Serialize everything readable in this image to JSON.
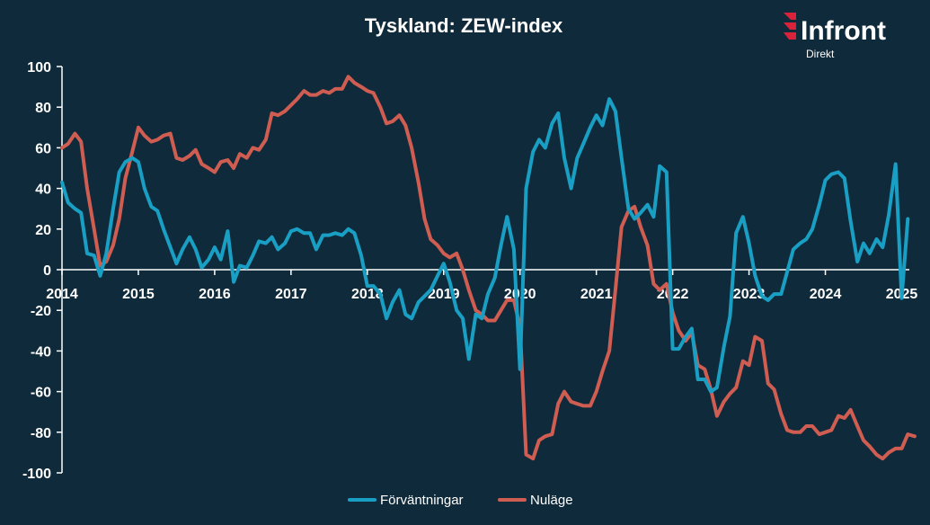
{
  "chart_data": {
    "type": "line",
    "title": "Tyskland: ZEW-index",
    "xlabel": "",
    "ylabel": "",
    "xlim": [
      2014.0,
      2025.1
    ],
    "ylim": [
      -100,
      100
    ],
    "yticks": [
      100,
      80,
      60,
      40,
      20,
      0,
      -20,
      -40,
      -60,
      -80,
      -100
    ],
    "xticks": [
      "2014",
      "2015",
      "2016",
      "2017",
      "2018",
      "2019",
      "2020",
      "2021",
      "2022",
      "2023",
      "2024",
      "2025"
    ],
    "grid": false,
    "legend": "bottom-center",
    "series": [
      {
        "name": "Förväntningar",
        "color": "#1a9fc4",
        "points": [
          [
            2014.0,
            43
          ],
          [
            2014.08,
            33
          ],
          [
            2014.17,
            30
          ],
          [
            2014.25,
            28
          ],
          [
            2014.33,
            8
          ],
          [
            2014.42,
            7
          ],
          [
            2014.5,
            -3
          ],
          [
            2014.58,
            8
          ],
          [
            2014.67,
            30
          ],
          [
            2014.75,
            48
          ],
          [
            2014.83,
            53
          ],
          [
            2014.92,
            55
          ],
          [
            2015.0,
            53
          ],
          [
            2015.08,
            40
          ],
          [
            2015.17,
            31
          ],
          [
            2015.25,
            29
          ],
          [
            2015.33,
            20
          ],
          [
            2015.42,
            11
          ],
          [
            2015.5,
            3
          ],
          [
            2015.58,
            10
          ],
          [
            2015.67,
            16
          ],
          [
            2015.75,
            10
          ],
          [
            2015.83,
            1
          ],
          [
            2015.92,
            5
          ],
          [
            2016.0,
            11
          ],
          [
            2016.08,
            5
          ],
          [
            2016.17,
            19
          ],
          [
            2016.25,
            -6
          ],
          [
            2016.33,
            2
          ],
          [
            2016.42,
            1
          ],
          [
            2016.5,
            7
          ],
          [
            2016.58,
            14
          ],
          [
            2016.67,
            13
          ],
          [
            2016.75,
            16
          ],
          [
            2016.83,
            10
          ],
          [
            2016.92,
            13
          ],
          [
            2017.0,
            19
          ],
          [
            2017.08,
            20
          ],
          [
            2017.17,
            18
          ],
          [
            2017.25,
            18
          ],
          [
            2017.33,
            10
          ],
          [
            2017.42,
            17
          ],
          [
            2017.5,
            17
          ],
          [
            2017.58,
            18
          ],
          [
            2017.67,
            17
          ],
          [
            2017.75,
            20
          ],
          [
            2017.83,
            18
          ],
          [
            2017.92,
            7
          ],
          [
            2018.0,
            -8
          ],
          [
            2018.08,
            -8
          ],
          [
            2018.17,
            -12
          ],
          [
            2018.25,
            -24
          ],
          [
            2018.33,
            -16
          ],
          [
            2018.42,
            -10
          ],
          [
            2018.5,
            -22
          ],
          [
            2018.58,
            -24
          ],
          [
            2018.67,
            -16
          ],
          [
            2018.75,
            -13
          ],
          [
            2018.83,
            -10
          ],
          [
            2018.92,
            -3
          ],
          [
            2019.0,
            3
          ],
          [
            2019.08,
            -6
          ],
          [
            2019.17,
            -20
          ],
          [
            2019.25,
            -24
          ],
          [
            2019.33,
            -44
          ],
          [
            2019.42,
            -22
          ],
          [
            2019.5,
            -24
          ],
          [
            2019.58,
            -12
          ],
          [
            2019.67,
            -4
          ],
          [
            2019.75,
            12
          ],
          [
            2019.83,
            26
          ],
          [
            2019.92,
            10
          ],
          [
            2020.0,
            -49
          ],
          [
            2020.08,
            40
          ],
          [
            2020.17,
            58
          ],
          [
            2020.25,
            64
          ],
          [
            2020.33,
            60
          ],
          [
            2020.42,
            72
          ],
          [
            2020.5,
            77
          ],
          [
            2020.58,
            55
          ],
          [
            2020.67,
            40
          ],
          [
            2020.75,
            55
          ],
          [
            2020.83,
            62
          ],
          [
            2020.92,
            70
          ],
          [
            2021.0,
            76
          ],
          [
            2021.08,
            71
          ],
          [
            2021.17,
            84
          ],
          [
            2021.25,
            78
          ],
          [
            2021.33,
            55
          ],
          [
            2021.42,
            30
          ],
          [
            2021.5,
            25
          ],
          [
            2021.58,
            28
          ],
          [
            2021.67,
            32
          ],
          [
            2021.75,
            26
          ],
          [
            2021.83,
            51
          ],
          [
            2021.92,
            48
          ],
          [
            2022.0,
            -39
          ],
          [
            2022.08,
            -39
          ],
          [
            2022.17,
            -33
          ],
          [
            2022.25,
            -29
          ],
          [
            2022.33,
            -54
          ],
          [
            2022.42,
            -54
          ],
          [
            2022.5,
            -60
          ],
          [
            2022.58,
            -58
          ],
          [
            2022.67,
            -38
          ],
          [
            2022.75,
            -23
          ],
          [
            2022.83,
            18
          ],
          [
            2022.92,
            26
          ],
          [
            2023.0,
            13
          ],
          [
            2023.08,
            -3
          ],
          [
            2023.17,
            -13
          ],
          [
            2023.25,
            -15
          ],
          [
            2023.33,
            -12
          ],
          [
            2023.42,
            -12
          ],
          [
            2023.5,
            -1
          ],
          [
            2023.58,
            10
          ],
          [
            2023.67,
            13
          ],
          [
            2023.75,
            15
          ],
          [
            2023.83,
            20
          ],
          [
            2023.92,
            32
          ],
          [
            2024.0,
            44
          ],
          [
            2024.08,
            47
          ],
          [
            2024.17,
            48
          ],
          [
            2024.25,
            45
          ],
          [
            2024.33,
            24
          ],
          [
            2024.42,
            4
          ],
          [
            2024.5,
            13
          ],
          [
            2024.58,
            8
          ],
          [
            2024.67,
            15
          ],
          [
            2024.75,
            11
          ],
          [
            2024.83,
            27
          ],
          [
            2024.92,
            52
          ],
          [
            2025.0,
            -14
          ],
          [
            2025.08,
            25
          ]
        ]
      },
      {
        "name": "Nuläge",
        "color": "#d05d52",
        "points": [
          [
            2014.0,
            60
          ],
          [
            2014.08,
            62
          ],
          [
            2014.17,
            67
          ],
          [
            2014.25,
            63
          ],
          [
            2014.33,
            40
          ],
          [
            2014.42,
            20
          ],
          [
            2014.5,
            2
          ],
          [
            2014.58,
            4
          ],
          [
            2014.67,
            12
          ],
          [
            2014.75,
            25
          ],
          [
            2014.83,
            45
          ],
          [
            2014.92,
            58
          ],
          [
            2015.0,
            70
          ],
          [
            2015.08,
            66
          ],
          [
            2015.17,
            63
          ],
          [
            2015.25,
            64
          ],
          [
            2015.33,
            66
          ],
          [
            2015.42,
            67
          ],
          [
            2015.5,
            55
          ],
          [
            2015.58,
            54
          ],
          [
            2015.67,
            56
          ],
          [
            2015.75,
            59
          ],
          [
            2015.83,
            52
          ],
          [
            2015.92,
            50
          ],
          [
            2016.0,
            48
          ],
          [
            2016.08,
            53
          ],
          [
            2016.17,
            54
          ],
          [
            2016.25,
            50
          ],
          [
            2016.33,
            57
          ],
          [
            2016.42,
            55
          ],
          [
            2016.5,
            60
          ],
          [
            2016.58,
            59
          ],
          [
            2016.67,
            64
          ],
          [
            2016.75,
            77
          ],
          [
            2016.83,
            76
          ],
          [
            2016.92,
            78
          ],
          [
            2017.0,
            81
          ],
          [
            2017.08,
            84
          ],
          [
            2017.17,
            88
          ],
          [
            2017.25,
            86
          ],
          [
            2017.33,
            86
          ],
          [
            2017.42,
            88
          ],
          [
            2017.5,
            87
          ],
          [
            2017.58,
            89
          ],
          [
            2017.67,
            89
          ],
          [
            2017.75,
            95
          ],
          [
            2017.83,
            92
          ],
          [
            2017.92,
            90
          ],
          [
            2018.0,
            88
          ],
          [
            2018.08,
            87
          ],
          [
            2018.17,
            80
          ],
          [
            2018.25,
            72
          ],
          [
            2018.33,
            73
          ],
          [
            2018.42,
            76
          ],
          [
            2018.5,
            71
          ],
          [
            2018.58,
            60
          ],
          [
            2018.67,
            43
          ],
          [
            2018.75,
            25
          ],
          [
            2018.83,
            15
          ],
          [
            2018.92,
            12
          ],
          [
            2019.0,
            8
          ],
          [
            2019.08,
            6
          ],
          [
            2019.17,
            8
          ],
          [
            2019.25,
            0
          ],
          [
            2019.33,
            -10
          ],
          [
            2019.42,
            -20
          ],
          [
            2019.5,
            -22
          ],
          [
            2019.58,
            -25
          ],
          [
            2019.67,
            -25
          ],
          [
            2019.75,
            -20
          ],
          [
            2019.83,
            -15
          ],
          [
            2019.92,
            -15
          ],
          [
            2020.0,
            -28
          ],
          [
            2020.08,
            -91
          ],
          [
            2020.17,
            -93
          ],
          [
            2020.25,
            -84
          ],
          [
            2020.33,
            -82
          ],
          [
            2020.42,
            -81
          ],
          [
            2020.5,
            -66
          ],
          [
            2020.58,
            -60
          ],
          [
            2020.67,
            -65
          ],
          [
            2020.75,
            -66
          ],
          [
            2020.83,
            -67
          ],
          [
            2020.92,
            -67
          ],
          [
            2021.0,
            -60
          ],
          [
            2021.08,
            -50
          ],
          [
            2021.17,
            -40
          ],
          [
            2021.25,
            -10
          ],
          [
            2021.33,
            21
          ],
          [
            2021.42,
            29
          ],
          [
            2021.5,
            31
          ],
          [
            2021.58,
            21
          ],
          [
            2021.67,
            12
          ],
          [
            2021.75,
            -7
          ],
          [
            2021.83,
            -10
          ],
          [
            2021.92,
            -7
          ],
          [
            2022.0,
            -21
          ],
          [
            2022.08,
            -30
          ],
          [
            2022.17,
            -35
          ],
          [
            2022.25,
            -31
          ],
          [
            2022.33,
            -47
          ],
          [
            2022.42,
            -49
          ],
          [
            2022.5,
            -59
          ],
          [
            2022.58,
            -72
          ],
          [
            2022.67,
            -65
          ],
          [
            2022.75,
            -61
          ],
          [
            2022.83,
            -58
          ],
          [
            2022.92,
            -45
          ],
          [
            2023.0,
            -47
          ],
          [
            2023.08,
            -33
          ],
          [
            2023.17,
            -35
          ],
          [
            2023.25,
            -56
          ],
          [
            2023.33,
            -59
          ],
          [
            2023.42,
            -71
          ],
          [
            2023.5,
            -79
          ],
          [
            2023.58,
            -80
          ],
          [
            2023.67,
            -80
          ],
          [
            2023.75,
            -77
          ],
          [
            2023.83,
            -77
          ],
          [
            2023.92,
            -81
          ],
          [
            2024.0,
            -80
          ],
          [
            2024.08,
            -79
          ],
          [
            2024.17,
            -72
          ],
          [
            2024.25,
            -73
          ],
          [
            2024.33,
            -69
          ],
          [
            2024.42,
            -77
          ],
          [
            2024.5,
            -84
          ],
          [
            2024.58,
            -87
          ],
          [
            2024.67,
            -91
          ],
          [
            2024.75,
            -93
          ],
          [
            2024.83,
            -90
          ],
          [
            2024.92,
            -88
          ],
          [
            2025.0,
            -88
          ],
          [
            2025.08,
            -81
          ],
          [
            2025.17,
            -82
          ]
        ]
      }
    ]
  },
  "branding": {
    "logo_text": "Infront",
    "logo_sub": "Direkt",
    "logo_color": "#d9233b"
  },
  "colors": {
    "background": "#0f2a3a",
    "axis": "#ffffff"
  }
}
